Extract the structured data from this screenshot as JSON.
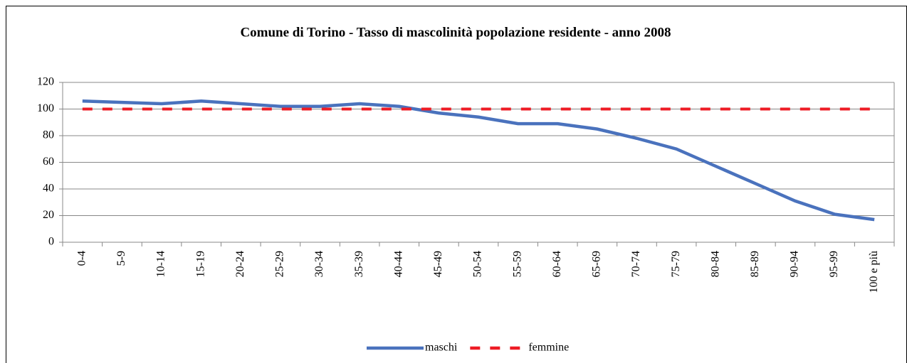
{
  "chart_data": {
    "type": "line",
    "title": "Comune di Torino - Tasso di mascolinità popolazione residente - anno 2008",
    "categories": [
      "0-4",
      "5-9",
      "10-14",
      "15-19",
      "20-24",
      "25-29",
      "30-34",
      "35-39",
      "40-44",
      "45-49",
      "50-54",
      "55-59",
      "60-64",
      "65-69",
      "70-74",
      "75-79",
      "80-84",
      "85-89",
      "90-94",
      "95-99",
      "100 e più"
    ],
    "series": [
      {
        "name": "maschi",
        "color": "#4a72bd",
        "dash": false,
        "values": [
          106,
          105,
          104,
          106,
          104,
          102,
          102,
          104,
          102,
          97,
          94,
          89,
          89,
          85,
          78,
          70,
          57,
          44,
          31,
          21,
          17
        ]
      },
      {
        "name": "femmine",
        "color": "#ee1c25",
        "dash": true,
        "values": [
          100,
          100,
          100,
          100,
          100,
          100,
          100,
          100,
          100,
          100,
          100,
          100,
          100,
          100,
          100,
          100,
          100,
          100,
          100,
          100,
          100
        ]
      }
    ],
    "ylim": [
      0,
      120
    ],
    "yticks": [
      0,
      20,
      40,
      60,
      80,
      100,
      120
    ],
    "grid": true,
    "legend": "bottom"
  }
}
